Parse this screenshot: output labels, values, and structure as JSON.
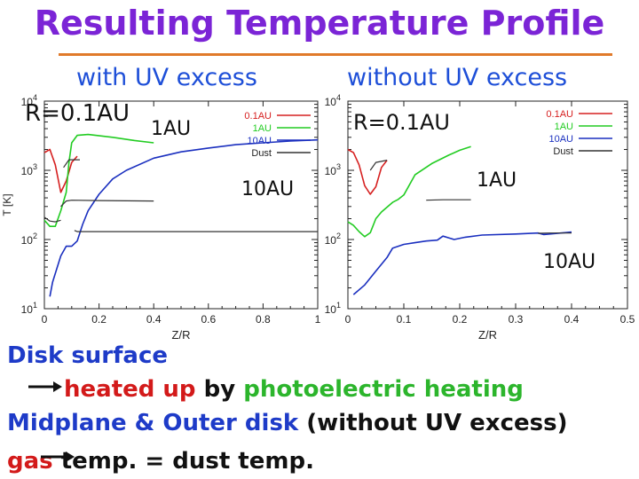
{
  "title": "Resulting Temperature Profile",
  "subtitle_left": "with UV excess",
  "subtitle_right": "without UV excess",
  "notes": {
    "line1": "Disk surface",
    "line2_a": "heated up",
    "line2_b": " by ",
    "line2_c": "photoelectric heating",
    "line3_a": "Midplane & Outer disk",
    "line3_b": " (without UV excess)",
    "line4_a": "gas",
    "line4_b": " temp. = dust temp."
  },
  "colors": {
    "r01": "#d62020",
    "r1": "#22cc22",
    "r10": "#1a2fbf",
    "dust": "#333333"
  },
  "chart_data": [
    {
      "type": "line",
      "xlabel": "Z/R",
      "ylabel": "T [K]",
      "xlim": [
        0,
        1
      ],
      "ylim": [
        10,
        10000
      ],
      "yscale": "log",
      "xticks": [
        "0",
        "0.2",
        "0.4",
        "0.6",
        "0.8",
        "1"
      ],
      "yticks": [
        "10^1",
        "10^2",
        "10^3",
        "10^4"
      ],
      "legend": [
        "0.1AU",
        "1AU",
        "10AU",
        "Dust"
      ],
      "legend_position": "top-right",
      "annotations": [
        "R=0.1AU",
        "1AU",
        "10AU"
      ],
      "series": [
        {
          "name": "0.1AU",
          "color": "r01",
          "points": [
            [
              0,
              1800
            ],
            [
              0.02,
              2000
            ],
            [
              0.04,
              1200
            ],
            [
              0.06,
              480
            ],
            [
              0.08,
              700
            ],
            [
              0.1,
              1300
            ],
            [
              0.12,
              1600
            ]
          ]
        },
        {
          "name": "1AU",
          "color": "r1",
          "points": [
            [
              0,
              190
            ],
            [
              0.02,
              155
            ],
            [
              0.04,
              155
            ],
            [
              0.06,
              260
            ],
            [
              0.08,
              480
            ],
            [
              0.09,
              1300
            ],
            [
              0.1,
              2500
            ],
            [
              0.12,
              3200
            ],
            [
              0.16,
              3300
            ],
            [
              0.25,
              3000
            ],
            [
              0.33,
              2700
            ],
            [
              0.4,
              2500
            ]
          ]
        },
        {
          "name": "10AU",
          "color": "r10",
          "points": [
            [
              0.02,
              15
            ],
            [
              0.03,
              24
            ],
            [
              0.06,
              58
            ],
            [
              0.08,
              80
            ],
            [
              0.1,
              80
            ],
            [
              0.12,
              95
            ],
            [
              0.14,
              165
            ],
            [
              0.16,
              260
            ],
            [
              0.2,
              450
            ],
            [
              0.25,
              750
            ],
            [
              0.3,
              1000
            ],
            [
              0.4,
              1500
            ],
            [
              0.5,
              1850
            ],
            [
              0.6,
              2100
            ],
            [
              0.7,
              2350
            ],
            [
              0.8,
              2500
            ],
            [
              0.9,
              2650
            ],
            [
              1.0,
              2750
            ]
          ]
        },
        {
          "name": "Dust",
          "color": "dust",
          "points": [
            [
              0,
              210
            ],
            [
              0.02,
              185
            ],
            [
              0.04,
              180
            ],
            [
              0.06,
              190
            ]
          ]
        },
        {
          "name": "Dust",
          "color": "dust",
          "points": [
            [
              0.06,
              300
            ],
            [
              0.08,
              360
            ],
            [
              0.1,
              370
            ],
            [
              0.2,
              365
            ],
            [
              0.4,
              360
            ]
          ]
        },
        {
          "name": "Dust",
          "color": "dust",
          "points": [
            [
              0.07,
              1100
            ],
            [
              0.09,
              1420
            ],
            [
              0.13,
              1420
            ]
          ]
        },
        {
          "name": "Dust",
          "color": "dust",
          "points": [
            [
              0.11,
              135
            ],
            [
              0.12,
              130
            ],
            [
              0.2,
              130
            ],
            [
              0.4,
              130
            ],
            [
              0.6,
              130
            ],
            [
              0.8,
              130
            ],
            [
              1.0,
              130
            ]
          ]
        }
      ]
    },
    {
      "type": "line",
      "xlabel": "Z/R",
      "xlim": [
        0,
        0.5
      ],
      "ylim": [
        10,
        10000
      ],
      "yscale": "log",
      "xticks": [
        "0",
        "0.1",
        "0.2",
        "0.3",
        "0.4",
        "0.5"
      ],
      "yticks": [
        "10^1",
        "10^2",
        "10^3",
        "10^4"
      ],
      "legend": [
        "0.1AU",
        "1AU",
        "10AU",
        "Dust"
      ],
      "legend_position": "top-right",
      "annotations": [
        "R=0.1AU",
        "1AU",
        "10AU"
      ],
      "series": [
        {
          "name": "0.1AU",
          "color": "r01",
          "points": [
            [
              0,
              2000
            ],
            [
              0.01,
              1800
            ],
            [
              0.02,
              1200
            ],
            [
              0.03,
              600
            ],
            [
              0.04,
              450
            ],
            [
              0.05,
              580
            ],
            [
              0.06,
              1100
            ],
            [
              0.07,
              1400
            ]
          ]
        },
        {
          "name": "1AU",
          "color": "r1",
          "points": [
            [
              0,
              180
            ],
            [
              0.01,
              160
            ],
            [
              0.02,
              130
            ],
            [
              0.03,
              110
            ],
            [
              0.04,
              125
            ],
            [
              0.05,
              200
            ],
            [
              0.06,
              250
            ],
            [
              0.08,
              345
            ],
            [
              0.09,
              380
            ],
            [
              0.1,
              440
            ],
            [
              0.12,
              860
            ],
            [
              0.15,
              1250
            ],
            [
              0.18,
              1650
            ],
            [
              0.2,
              1950
            ],
            [
              0.22,
              2200
            ]
          ]
        },
        {
          "name": "10AU",
          "color": "r10",
          "points": [
            [
              0.01,
              16
            ],
            [
              0.03,
              22
            ],
            [
              0.05,
              35
            ],
            [
              0.07,
              55
            ],
            [
              0.08,
              75
            ],
            [
              0.1,
              85
            ],
            [
              0.12,
              90
            ],
            [
              0.14,
              95
            ],
            [
              0.16,
              98
            ],
            [
              0.17,
              112
            ],
            [
              0.19,
              100
            ],
            [
              0.21,
              108
            ],
            [
              0.24,
              116
            ],
            [
              0.3,
              120
            ],
            [
              0.34,
              124
            ],
            [
              0.35,
              118
            ],
            [
              0.4,
              128
            ]
          ]
        },
        {
          "name": "Dust",
          "color": "dust",
          "points": [
            [
              0.04,
              1000
            ],
            [
              0.05,
              1300
            ],
            [
              0.07,
              1400
            ]
          ]
        },
        {
          "name": "Dust",
          "color": "dust",
          "points": [
            [
              0.14,
              370
            ],
            [
              0.17,
              375
            ],
            [
              0.22,
              375
            ]
          ]
        },
        {
          "name": "Dust",
          "color": "dust",
          "points": [
            [
              0.34,
              123
            ],
            [
              0.36,
              124
            ],
            [
              0.4,
              124
            ]
          ]
        }
      ]
    }
  ]
}
